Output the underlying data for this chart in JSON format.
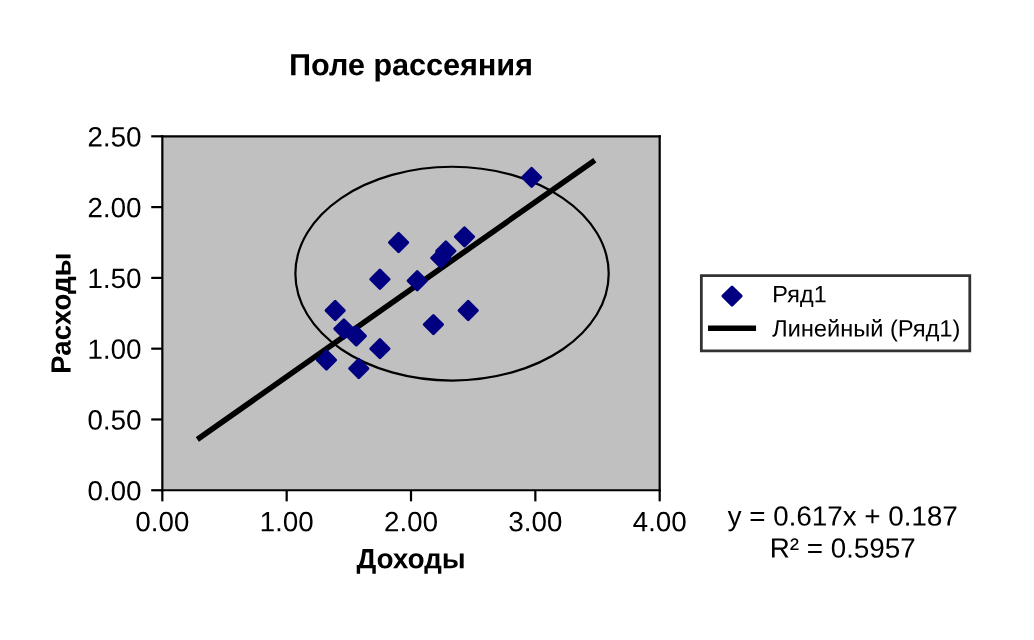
{
  "chart_data": {
    "type": "scatter",
    "title": "Поле рассеяния",
    "xlabel": "Доходы",
    "ylabel": "Расходы",
    "xlim": [
      0,
      4
    ],
    "ylim": [
      0,
      2.5
    ],
    "xticks": [
      {
        "value": 0,
        "label": "0.00"
      },
      {
        "value": 1,
        "label": "1.00"
      },
      {
        "value": 2,
        "label": "2.00"
      },
      {
        "value": 3,
        "label": "3.00"
      },
      {
        "value": 4,
        "label": "4.00"
      }
    ],
    "yticks": [
      {
        "value": 0,
        "label": "0.00"
      },
      {
        "value": 0.5,
        "label": "0.50"
      },
      {
        "value": 1,
        "label": "1.00"
      },
      {
        "value": 1.5,
        "label": "1.50"
      },
      {
        "value": 2,
        "label": "2.00"
      },
      {
        "value": 2.5,
        "label": "2.50"
      }
    ],
    "series": [
      {
        "name": "Ряд1",
        "color": "#000080",
        "marker": "diamond",
        "x": [
          2.97,
          1.9,
          2.43,
          2.28,
          2.24,
          1.75,
          2.05,
          1.39,
          2.46,
          1.46,
          1.56,
          2.18,
          1.75,
          1.32,
          1.58
        ],
        "values": [
          2.21,
          1.75,
          1.79,
          1.69,
          1.64,
          1.49,
          1.48,
          1.27,
          1.27,
          1.14,
          1.09,
          1.17,
          1.0,
          0.92,
          0.86
        ]
      },
      {
        "name": "Линейный (Ряд1)",
        "type": "line",
        "color": "#000000",
        "marker": "none",
        "line_style": "solid",
        "x": [
          0.3,
          3.46
        ],
        "values": [
          0.37,
          2.32
        ]
      }
    ],
    "annotations": [
      "y = 0.617x + 0.187",
      "R² = 0.5957"
    ],
    "legend": "right",
    "grid": false
  }
}
